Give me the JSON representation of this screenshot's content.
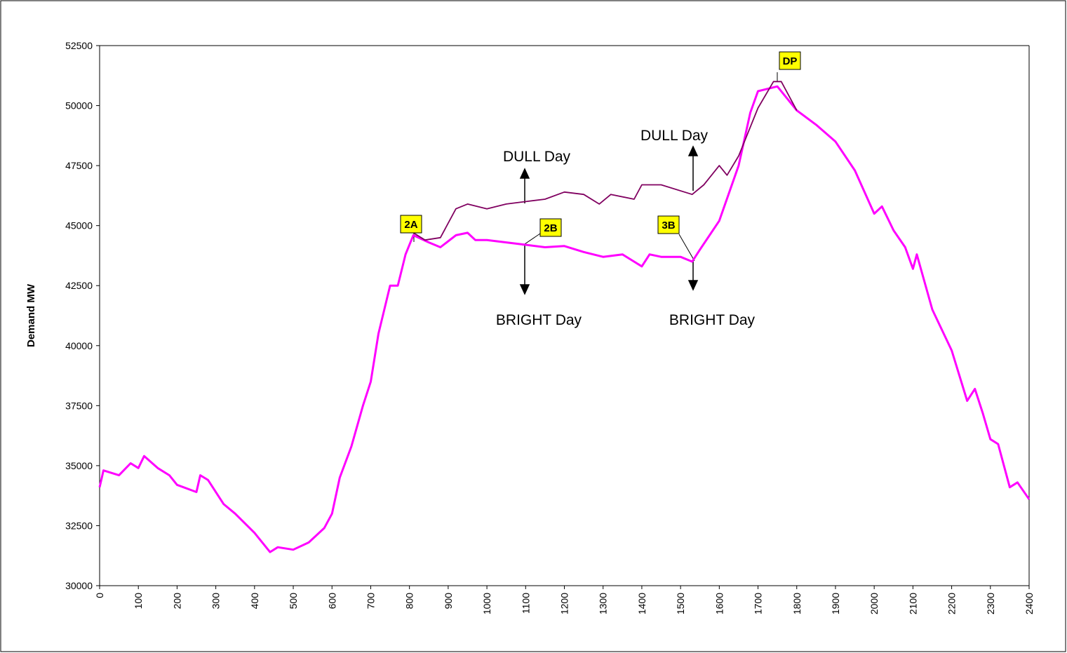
{
  "chart_data": {
    "type": "line",
    "ylabel": "Demand MW",
    "xlim": [
      0,
      2400
    ],
    "xticks": [
      0,
      100,
      200,
      300,
      400,
      500,
      600,
      700,
      800,
      900,
      1000,
      1100,
      1200,
      1300,
      1400,
      1500,
      1600,
      1700,
      1800,
      1900,
      2000,
      2100,
      2200,
      2300,
      2400
    ],
    "ylim": [
      30000,
      52500
    ],
    "yticks": [
      30000,
      32500,
      35000,
      37500,
      40000,
      42500,
      45000,
      47500,
      50000,
      52500
    ],
    "grid": false,
    "annotations": [
      "DULL Day",
      "DULL Day",
      "BRIGHT Day",
      "BRIGHT Day"
    ],
    "markers": [
      "2A",
      "2B",
      "3B",
      "DP"
    ],
    "series": [
      {
        "color": "#ff00ff",
        "x": [
          0,
          10,
          50,
          80,
          100,
          115,
          150,
          180,
          200,
          250,
          260,
          280,
          320,
          350,
          400,
          440,
          460,
          500,
          540,
          580,
          600,
          620,
          650,
          680,
          700,
          720,
          750,
          770,
          790,
          810,
          850,
          880,
          920,
          950,
          970,
          1000,
          1050,
          1100,
          1150,
          1200,
          1250,
          1300,
          1350,
          1380,
          1400,
          1420,
          1450,
          1500,
          1530,
          1550,
          1600,
          1650,
          1680,
          1700,
          1750,
          1800,
          1850,
          1900,
          1950,
          2000,
          2020,
          2050,
          2080,
          2100,
          2110,
          2150,
          2200,
          2240,
          2260,
          2280,
          2300,
          2320,
          2350,
          2370,
          2400
        ],
        "values": [
          34100,
          34800,
          34600,
          35100,
          34900,
          35400,
          34900,
          34600,
          34200,
          33900,
          34600,
          34400,
          33400,
          33000,
          32200,
          31400,
          31600,
          31500,
          31800,
          32400,
          33000,
          34500,
          35800,
          37500,
          38500,
          40500,
          42500,
          42500,
          43800,
          44600,
          44300,
          44100,
          44600,
          44700,
          44400,
          44400,
          44300,
          44200,
          44100,
          44150,
          43900,
          43700,
          43800,
          43500,
          43300,
          43800,
          43700,
          43700,
          43500,
          44000,
          45200,
          47500,
          49700,
          50600,
          50800,
          49800,
          49200,
          48500,
          47300,
          45500,
          45800,
          44800,
          44100,
          43200,
          43800,
          41500,
          39800,
          37700,
          38200,
          37200,
          36100,
          35900,
          34100,
          34300,
          33600
        ]
      },
      {
        "color": "#800060",
        "x": [
          810,
          840,
          880,
          920,
          950,
          1000,
          1050,
          1100,
          1150,
          1200,
          1250,
          1290,
          1320,
          1380,
          1400,
          1450,
          1530,
          1560,
          1600,
          1620,
          1650,
          1700,
          1740,
          1760,
          1800
        ],
        "values": [
          44700,
          44400,
          44500,
          45700,
          45900,
          45700,
          45900,
          46000,
          46100,
          46400,
          46300,
          45900,
          46300,
          46100,
          46700,
          46700,
          46300,
          46700,
          47500,
          47100,
          47900,
          49900,
          51000,
          51000,
          49800
        ]
      }
    ]
  }
}
